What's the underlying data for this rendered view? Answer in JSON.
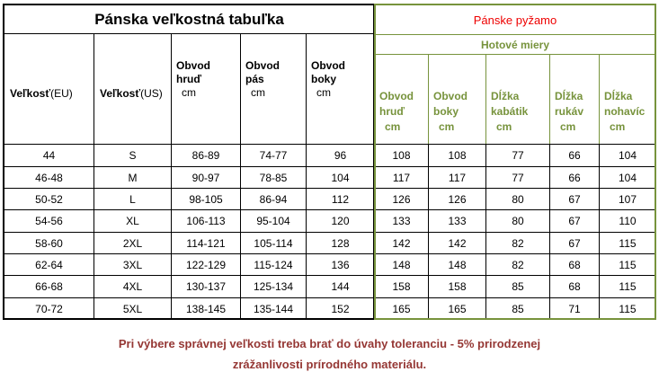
{
  "left": {
    "title": "Pánska veľkostná tabuľka",
    "headers": [
      {
        "label": "Veľkosť",
        "unit": "(EU)"
      },
      {
        "label": "Veľkosť",
        "unit": "(US)"
      },
      {
        "label": "Obvod hruď",
        "unit": "cm"
      },
      {
        "label": "Obvod pás",
        "unit": "cm"
      },
      {
        "label": "Obvod boky",
        "unit": "cm"
      }
    ]
  },
  "right": {
    "title": "Pánske pyžamo",
    "subtitle": "Hotové miery",
    "headers": [
      {
        "label": "Obvod hruď",
        "unit": "cm"
      },
      {
        "label": "Obvod boky",
        "unit": "cm"
      },
      {
        "label": "Dĺžka kabátik",
        "unit": "cm"
      },
      {
        "label": "Dĺžka rukáv",
        "unit": "cm"
      },
      {
        "label": "Dĺžka nohavíc",
        "unit": "cm"
      }
    ]
  },
  "rows": [
    [
      "44",
      "S",
      "86-89",
      "74-77",
      "96",
      "108",
      "108",
      "77",
      "66",
      "104"
    ],
    [
      "46-48",
      "M",
      "90-97",
      "78-85",
      "104",
      "117",
      "117",
      "77",
      "66",
      "104"
    ],
    [
      "50-52",
      "L",
      "98-105",
      "86-94",
      "112",
      "126",
      "126",
      "80",
      "67",
      "107"
    ],
    [
      "54-56",
      "XL",
      "106-113",
      "95-104",
      "120",
      "133",
      "133",
      "80",
      "67",
      "110"
    ],
    [
      "58-60",
      "2XL",
      "114-121",
      "105-114",
      "128",
      "142",
      "142",
      "82",
      "67",
      "115"
    ],
    [
      "62-64",
      "3XL",
      "122-129",
      "115-124",
      "136",
      "148",
      "148",
      "82",
      "68",
      "115"
    ],
    [
      "66-68",
      "4XL",
      "130-137",
      "125-134",
      "144",
      "158",
      "158",
      "85",
      "68",
      "115"
    ],
    [
      "70-72",
      "5XL",
      "138-145",
      "135-144",
      "152",
      "165",
      "165",
      "85",
      "71",
      "115"
    ]
  ],
  "footer": [
    "Pri výbere správnej veľkosti treba brať do úvahy toleranciu - 5% prirodzenej",
    "zrážanlivosti prírodného materiálu."
  ]
}
